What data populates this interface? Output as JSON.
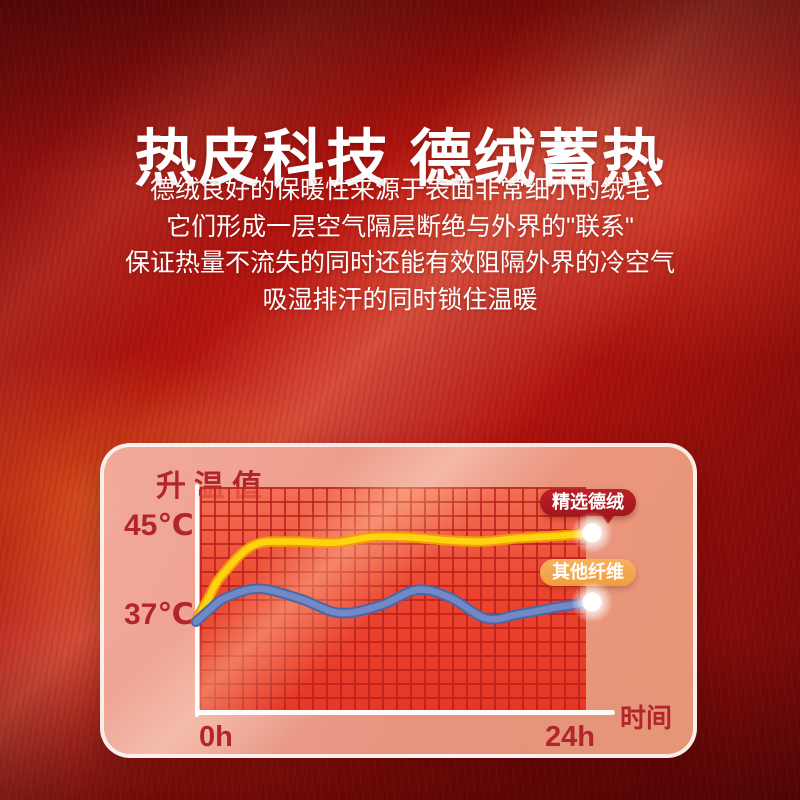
{
  "page": {
    "title": "热皮科技 德绒蓄热",
    "description_lines": [
      "德绒良好的保暖性来源于表面非常细小的绒毛",
      "它们形成一层空气隔层断绝与外界的\"联系\"",
      "保证热量不流失的同时还能有效阻隔外界的冷空气",
      "吸湿排汗的同时锁住温暖"
    ]
  },
  "chart": {
    "y_axis_title": "升温值",
    "y_tick_top": "45℃",
    "y_tick_bottom": "37℃",
    "x_tick_start": "0h",
    "x_tick_end": "24h",
    "x_axis_title": "时间",
    "badge_devv": "精选德绒",
    "badge_other": "其他纤维"
  },
  "colors": {
    "label_red": "#b2252b",
    "badge_devv_bg": "#b01f26",
    "badge_other_bg": "#f3a74e",
    "line_devv": "#ffd312",
    "line_devv_edge": "#ef9a06",
    "line_other": "#7189c6",
    "line_other_edge": "#4c67a5",
    "axis_white": "#ffffff"
  },
  "chart_data": {
    "type": "line",
    "title": "升温值",
    "xlabel": "时间",
    "x_unit": "h",
    "xlim": [
      0,
      24
    ],
    "x_ticks": [
      "0h",
      "24h"
    ],
    "y_ticks_labeled": [
      37,
      45
    ],
    "y_tick_labels": [
      "37℃",
      "45℃"
    ],
    "grid": true,
    "legend_position": "inline-badges-right",
    "series": [
      {
        "name": "精选德绒",
        "color": "#ffd312",
        "edge_color": "#ef9a06",
        "x": [
          0,
          0.7,
          1.5,
          3.4,
          5.6,
          8.4,
          10.6,
          12.8,
          15.3,
          17.4,
          19.6,
          21.8,
          23.7,
          24
        ],
        "values": [
          36.3,
          38.2,
          40.3,
          43.1,
          43.5,
          43.4,
          43.9,
          43.9,
          43.6,
          43.5,
          43.8,
          44.0,
          44.2,
          44.3
        ]
      },
      {
        "name": "其他纤维",
        "color": "#7189c6",
        "edge_color": "#4c67a5",
        "x": [
          0,
          0.9,
          1.8,
          3.8,
          6.3,
          8.7,
          11.2,
          13.4,
          15.4,
          17.6,
          19.6,
          21.8,
          24
        ],
        "values": [
          36.2,
          37.4,
          38.4,
          39.2,
          38.3,
          37.0,
          37.7,
          39.1,
          38.4,
          36.5,
          36.9,
          37.5,
          38.0
        ]
      }
    ]
  }
}
